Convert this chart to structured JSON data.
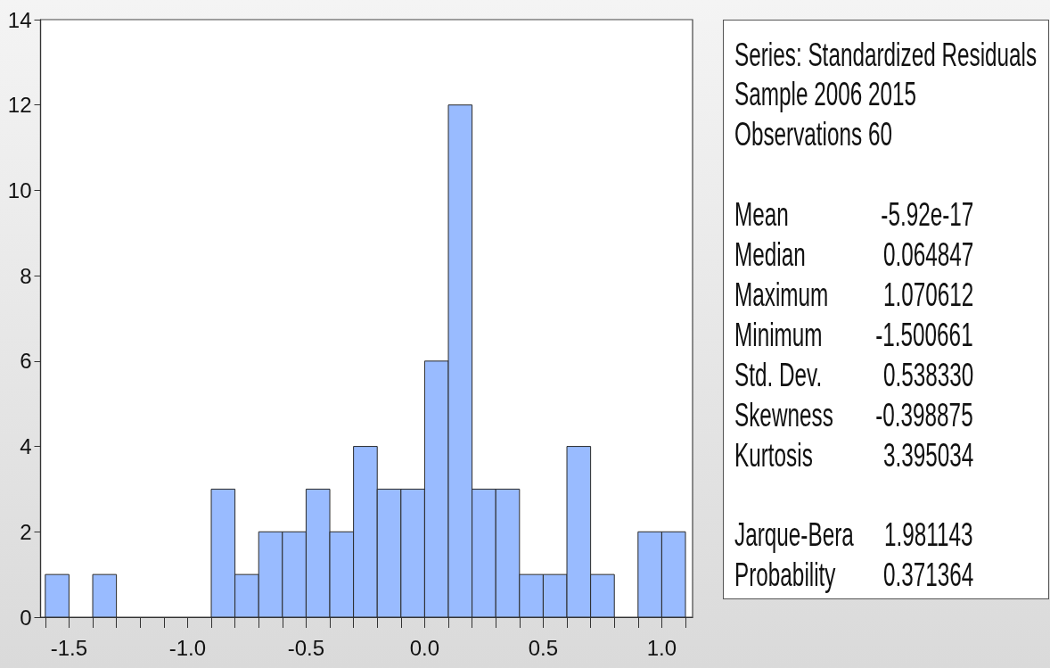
{
  "chart_data": {
    "type": "histogram",
    "bins": [
      -1.6,
      -1.5,
      -1.4,
      -1.3,
      -1.2,
      -1.1,
      -1.0,
      -0.9,
      -0.8,
      -0.7,
      -0.6,
      -0.5,
      -0.4,
      -0.3,
      -0.2,
      -0.1,
      0.0,
      0.1,
      0.2,
      0.3,
      0.4,
      0.5,
      0.6,
      0.7,
      0.8,
      0.9,
      1.0,
      1.1
    ],
    "values": [
      1,
      0,
      1,
      0,
      0,
      0,
      0,
      3,
      1,
      2,
      2,
      3,
      2,
      4,
      3,
      3,
      6,
      12,
      3,
      3,
      1,
      1,
      4,
      1,
      0,
      2,
      2
    ],
    "color": "#99bbff",
    "xlim": [
      -1.62,
      1.13
    ],
    "xticks": [
      {
        "value": -1.6,
        "label": null
      },
      -1.5,
      {
        "value": -1.4,
        "label": null
      },
      {
        "value": -1.3,
        "label": null
      },
      {
        "value": -1.2,
        "label": null
      },
      {
        "value": -1.1,
        "label": null
      },
      {
        "value": -1.0,
        "label": "-1.0"
      },
      {
        "value": -0.9,
        "label": null
      },
      {
        "value": -0.8,
        "label": null
      },
      {
        "value": -0.7,
        "label": null
      },
      {
        "value": -0.6,
        "label": null
      },
      -0.5,
      {
        "value": -0.4,
        "label": null
      },
      {
        "value": -0.3,
        "label": null
      },
      {
        "value": -0.2,
        "label": null
      },
      {
        "value": -0.1,
        "label": null
      },
      {
        "value": 0.0,
        "label": "0.0"
      },
      {
        "value": 0.1,
        "label": null
      },
      {
        "value": 0.2,
        "label": null
      },
      {
        "value": 0.3,
        "label": null
      },
      {
        "value": 0.4,
        "label": null
      },
      0.5,
      {
        "value": 0.6,
        "label": null
      },
      {
        "value": 0.7,
        "label": null
      },
      {
        "value": 0.8,
        "label": null
      },
      {
        "value": 0.9,
        "label": null
      },
      {
        "value": 1.0,
        "label": "1.0"
      },
      {
        "value": 1.1,
        "label": null
      }
    ],
    "ylim": [
      0,
      14
    ],
    "yticks": [
      0,
      2,
      4,
      6,
      8,
      10,
      12,
      14
    ],
    "grid": false,
    "annotations": [
      "Series: Standardized Residuals",
      "Sample 2006 2015",
      "Observations 60",
      "Mean",
      "-5.92e-17",
      "Median",
      "0.064847",
      "Maximum",
      "1.070612",
      "Minimum",
      "-1.500661",
      "Std. Dev.",
      "0.538330",
      "Skewness",
      "-0.398875",
      "Kurtosis",
      "3.395034",
      "Jarque-Bera",
      "1.981143",
      "Probability",
      "0.371364"
    ]
  }
}
